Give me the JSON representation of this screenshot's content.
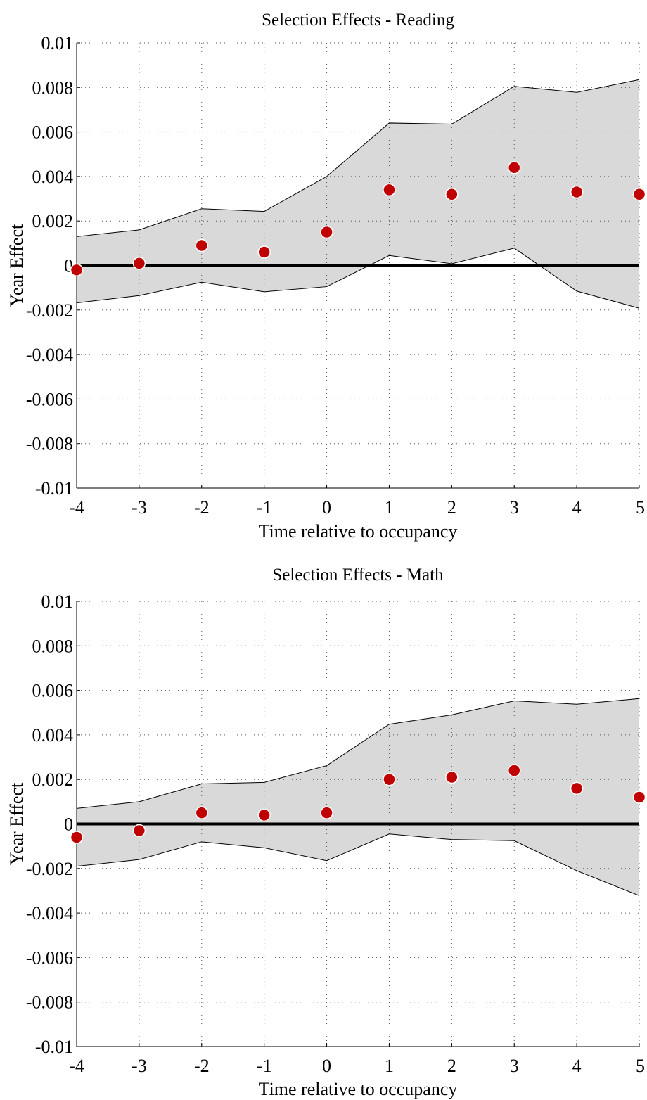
{
  "chart_data": [
    {
      "type": "scatter",
      "title": "Selection Effects - Reading",
      "xlabel": "Time relative to occupancy",
      "ylabel": "Year Effect",
      "xlim": [
        -4,
        5
      ],
      "ylim": [
        -0.01,
        0.01
      ],
      "xticks": [
        "-4",
        "-3",
        "-2",
        "-1",
        "0",
        "1",
        "2",
        "3",
        "4",
        "5"
      ],
      "yticks": [
        "0.01",
        "0.008",
        "0.006",
        "0.004",
        "0.002",
        "0",
        "-0.002",
        "-0.004",
        "-0.006",
        "-0.008",
        "-0.01"
      ],
      "grid": true,
      "x": [
        -4,
        -3,
        -2,
        -1,
        0,
        1,
        2,
        3,
        4,
        5
      ],
      "values": [
        -0.0002,
        0.0001,
        0.0009,
        0.0006,
        0.0015,
        0.0034,
        0.0032,
        0.0044,
        0.0033,
        0.0032
      ],
      "ci_upper": [
        0.0013,
        0.0016,
        0.00255,
        0.00243,
        0.004,
        0.0064,
        0.00635,
        0.00805,
        0.00778,
        0.00835
      ],
      "ci_lower": [
        -0.00168,
        -0.00135,
        -0.00075,
        -0.00118,
        -0.00095,
        0.00045,
        8e-05,
        0.00078,
        -0.00115,
        -0.00192
      ],
      "reference_line": 0,
      "colors": {
        "points": "#c00000",
        "band": "#d9d9d9",
        "band_edge": "#000000",
        "reference": "#000000"
      }
    },
    {
      "type": "scatter",
      "title": "Selection Effects - Math",
      "xlabel": "Time relative to occupancy",
      "ylabel": "Year Effect",
      "xlim": [
        -4,
        5
      ],
      "ylim": [
        -0.01,
        0.01
      ],
      "xticks": [
        "-4",
        "-3",
        "-2",
        "-1",
        "0",
        "1",
        "2",
        "3",
        "4",
        "5"
      ],
      "yticks": [
        "0.01",
        "0.008",
        "0.006",
        "0.004",
        "0.002",
        "0",
        "-0.002",
        "-0.004",
        "-0.006",
        "-0.008",
        "-0.01"
      ],
      "grid": true,
      "x": [
        -4,
        -3,
        -2,
        -1,
        0,
        1,
        2,
        3,
        4,
        5
      ],
      "values": [
        -0.0006,
        -0.0003,
        0.0005,
        0.0004,
        0.0005,
        0.002,
        0.0021,
        0.0024,
        0.0016,
        0.0012
      ],
      "ci_upper": [
        0.0007,
        0.001,
        0.0018,
        0.00187,
        0.00262,
        0.00448,
        0.0049,
        0.00553,
        0.00538,
        0.00563
      ],
      "ci_lower": [
        -0.0019,
        -0.0016,
        -0.0008,
        -0.00107,
        -0.00165,
        -0.00045,
        -0.0007,
        -0.00075,
        -0.0021,
        -0.00322
      ],
      "reference_line": 0,
      "colors": {
        "points": "#c00000",
        "band": "#d9d9d9",
        "band_edge": "#000000",
        "reference": "#000000"
      }
    }
  ]
}
